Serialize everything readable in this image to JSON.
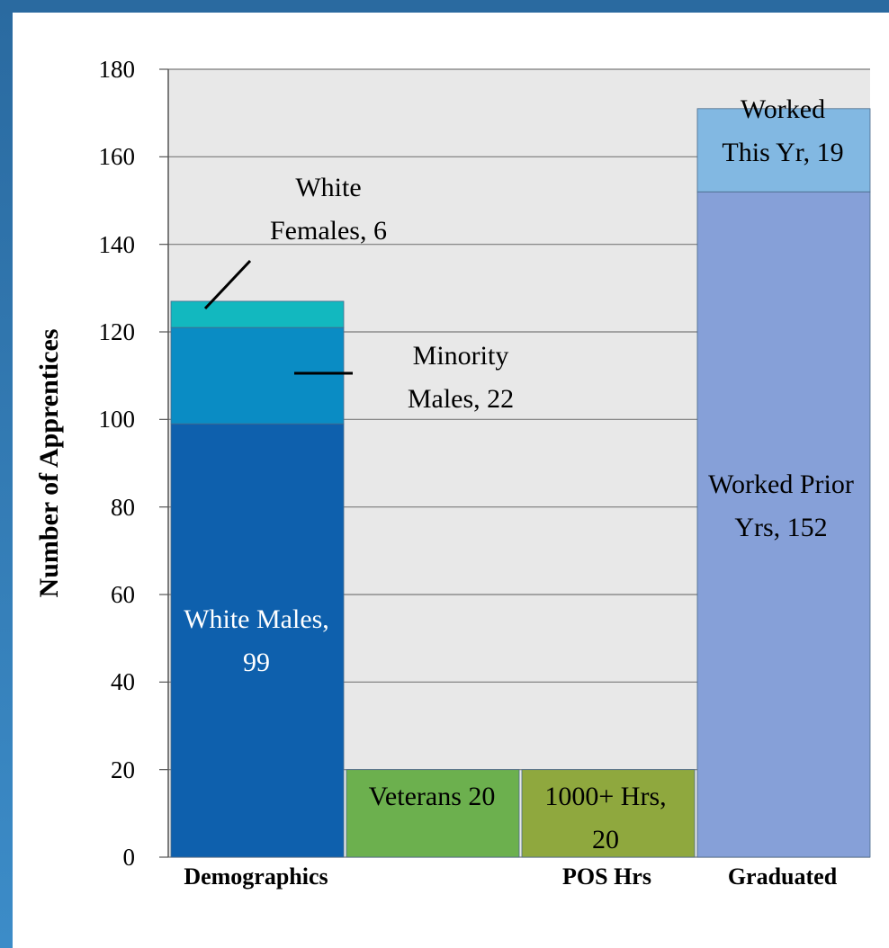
{
  "chart_data": {
    "type": "stacked-bar",
    "y_label": "Number of Apprentices",
    "categories": [
      "Demographics",
      null,
      "POS Hrs",
      "Graduated"
    ],
    "ylim": [
      0,
      180
    ],
    "yticks": [
      0,
      20,
      40,
      60,
      80,
      100,
      120,
      140,
      160,
      180
    ],
    "grid": true,
    "series": [
      {
        "color": "#0e60ad",
        "values": [
          99,
          null,
          null,
          null
        ],
        "value_labels": [
          "White Males, 99",
          null,
          null,
          null
        ]
      },
      {
        "color": "#0a8cc4",
        "values": [
          22,
          null,
          null,
          null
        ],
        "value_labels": [
          "Minority Males, 22",
          null,
          null,
          null
        ]
      },
      {
        "color": "#12b8bf",
        "values": [
          6,
          null,
          null,
          null
        ],
        "value_labels": [
          "White Females, 6",
          null,
          null,
          null
        ]
      },
      {
        "color": "#6cb04e",
        "values": [
          null,
          20,
          null,
          null
        ],
        "value_labels": [
          null,
          "Veterans 20",
          null,
          null
        ]
      },
      {
        "color": "#8fa83e",
        "values": [
          null,
          null,
          20,
          null
        ],
        "value_labels": [
          null,
          null,
          "1000+ Hrs, 20",
          null
        ]
      },
      {
        "color": "#86a0d8",
        "values": [
          null,
          null,
          null,
          152
        ],
        "value_labels": [
          null,
          null,
          null,
          "Worked Prior Yrs, 152"
        ]
      },
      {
        "color": "#82b8e2",
        "values": [
          null,
          null,
          null,
          19
        ],
        "value_labels": [
          null,
          null,
          null,
          "Worked This Yr, 19"
        ]
      }
    ]
  }
}
